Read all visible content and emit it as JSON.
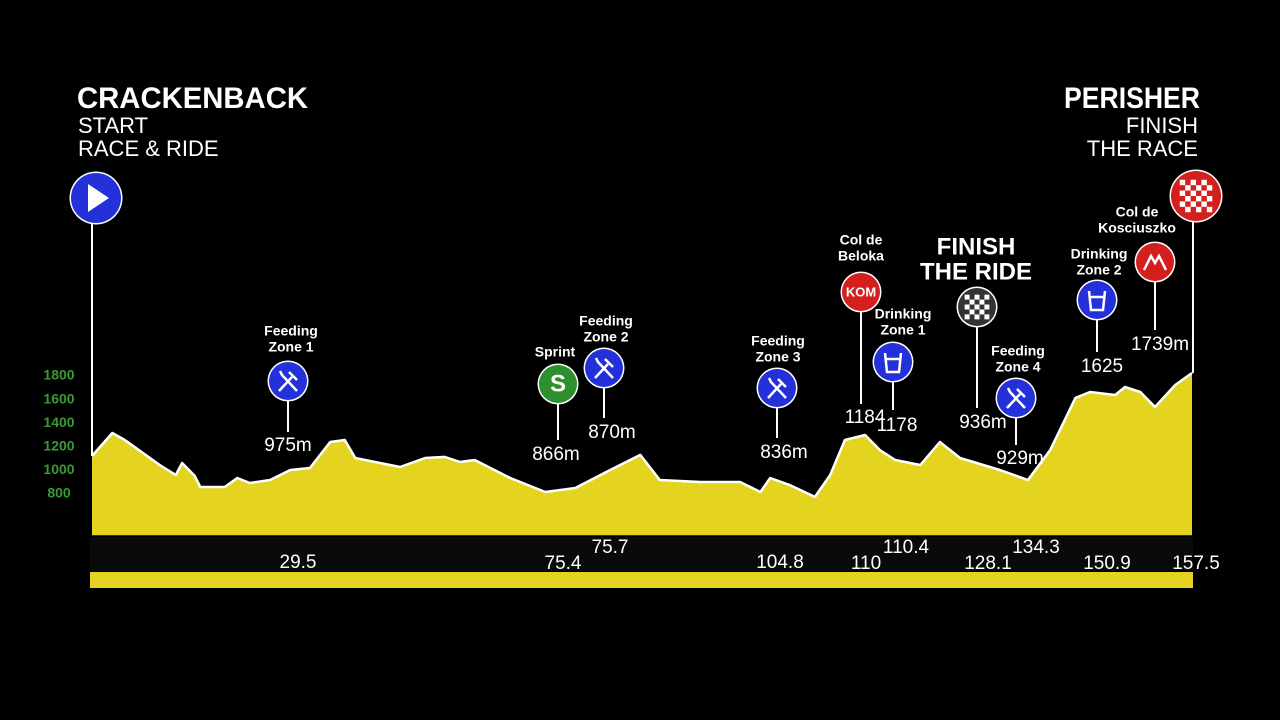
{
  "chart_data": {
    "type": "area",
    "x": [
      0,
      2.9,
      4.7,
      9.7,
      12.0,
      12.9,
      14.7,
      15.5,
      19.0,
      20.8,
      22.6,
      25.5,
      28.4,
      31.2,
      34.1,
      36.2,
      37.7,
      44.1,
      47.7,
      50.5,
      52.7,
      54.8,
      59.9,
      64.9,
      69.2,
      74.2,
      78.5,
      81.3,
      87.1,
      92.8,
      95.7,
      97.1,
      99.9,
      103.5,
      105.7,
      107.8,
      110.7,
      112.8,
      115.0,
      118.6,
      121.4,
      124.3,
      130.0,
      134.0,
      137.2,
      140.8,
      142.9,
      146.5,
      147.9,
      150.1,
      152.2,
      155.1,
      157.5
    ],
    "values": [
      1122,
      1317,
      1258,
      1046,
      961,
      1063,
      953,
      859,
      859,
      936,
      893,
      919,
      1003,
      1020,
      1241,
      1258,
      1105,
      1029,
      1105,
      1114,
      1071,
      1088,
      936,
      817,
      851,
      1003,
      1131,
      919,
      902,
      902,
      817,
      936,
      876,
      775,
      961,
      1258,
      1300,
      1173,
      1088,
      1046,
      1241,
      1105,
      1003,
      919,
      1173,
      1614,
      1664,
      1639,
      1707,
      1664,
      1537,
      1724,
      1825
    ],
    "color": "#e5d41f",
    "line_color": "#ffffff",
    "xlim": [
      0,
      157.5
    ],
    "ylim": [
      450,
      2000
    ],
    "yticks": [
      800,
      1000,
      1200,
      1400,
      1600,
      1800
    ],
    "start": {
      "name": "CRACKENBACK",
      "lines": [
        "START",
        "RACE & RIDE"
      ]
    },
    "finish": {
      "name": "PERISHER",
      "lines": [
        "FINISH",
        "THE RACE"
      ],
      "distance": 157.5
    },
    "waypoints": [
      {
        "label": [
          "Feeding",
          "Zone 1"
        ],
        "icon": "feed",
        "distance": 29.5,
        "elevation": 975,
        "elevation_label": "975m"
      },
      {
        "label": [
          "Sprint"
        ],
        "icon": "sprint",
        "symbol": "S",
        "distance": 75.4,
        "elevation": 866,
        "elevation_label": "866m"
      },
      {
        "label": [
          "Feeding",
          "Zone 2"
        ],
        "icon": "feed",
        "distance": 75.7,
        "elevation": 870,
        "elevation_label": "870m"
      },
      {
        "label": [
          "Feeding",
          "Zone 3"
        ],
        "icon": "feed",
        "distance": 104.8,
        "elevation": 836,
        "elevation_label": "836m"
      },
      {
        "label": [
          "Col de",
          "Beloka"
        ],
        "icon": "kom",
        "symbol": "KOM",
        "distance": 110,
        "elevation": 1184
      },
      {
        "label": [
          "Drinking",
          "Zone 1"
        ],
        "icon": "drink",
        "distance": 110.4,
        "elevation": 1178
      },
      {
        "label": [
          "FINISH",
          "THE RIDE"
        ],
        "icon": "checkered",
        "distance": 128.1,
        "elevation": 936,
        "elevation_label": "936m"
      },
      {
        "label": [
          "Feeding",
          "Zone 4"
        ],
        "icon": "feed",
        "distance": 134.3,
        "elevation": 929,
        "elevation_label": "929m"
      },
      {
        "label": [
          "Drinking",
          "Zone 2"
        ],
        "icon": "drink",
        "distance": 150.9,
        "elevation": 1625
      },
      {
        "label": [
          "Col de",
          "Kosciuszko"
        ],
        "icon": "mountain",
        "elevation": 1739,
        "elevation_label": "1739m"
      }
    ]
  }
}
